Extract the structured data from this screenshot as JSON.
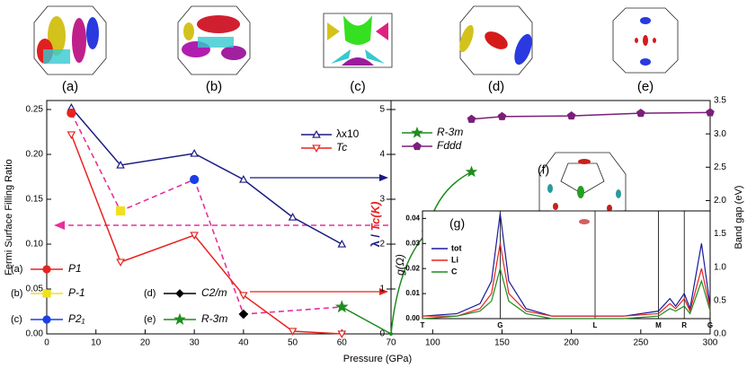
{
  "panels": [
    "(a)",
    "(b)",
    "(c)",
    "(d)",
    "(e)",
    "(f)"
  ],
  "chart_data": [
    {
      "type": "line",
      "xlabel": "Pressure (GPa)",
      "ylabel": "Fermi Surface Filling  Ratio",
      "y2label": [
        "λ /",
        "Tc(K)"
      ],
      "y3label": "Band gap (eV)",
      "xlim": [
        0,
        70
      ],
      "xticks": [
        0,
        10,
        20,
        30,
        40,
        50,
        60,
        70
      ],
      "x2lim": [
        70,
        300
      ],
      "x2ticks": [
        100,
        150,
        200,
        250,
        300
      ],
      "ylim": [
        0,
        0.26
      ],
      "yticks": [
        {
          "value": 0,
          "label": "0.00"
        },
        0.05,
        {
          "value": 0.1,
          "label": "0.10"
        },
        0.15,
        {
          "value": 0.2,
          "label": "0.20"
        },
        0.25
      ],
      "y2lim": [
        0,
        5.2
      ],
      "y2ticks": [
        0,
        1,
        2,
        3,
        4,
        5
      ],
      "y3lim": [
        0,
        3.5
      ],
      "y3ticks": [
        {
          "value": 0,
          "label": "0.0"
        },
        0.5,
        {
          "value": 1,
          "label": "1.0"
        },
        1.5,
        {
          "value": 2,
          "label": "2.0"
        },
        2.5,
        {
          "value": 3,
          "label": "3.0"
        },
        3.5
      ],
      "connector_color": "#e8309a",
      "series": [
        {
          "name": "λx10",
          "axis": "y2",
          "color": "#1a1a80",
          "marker": "triangle",
          "x": [
            5,
            15,
            30,
            40,
            50,
            60
          ],
          "values": [
            5.04,
            3.76,
            4.02,
            3.44,
            2.6,
            2.0
          ]
        },
        {
          "name": "Tc",
          "axis": "y2",
          "color": "#e8231f",
          "marker": "triangle-down",
          "x": [
            5,
            15,
            30,
            40,
            50,
            60
          ],
          "values": [
            4.44,
            1.6,
            2.2,
            0.86,
            0.06,
            0
          ]
        },
        {
          "name": "P1",
          "label": "(a)",
          "axis": "y",
          "color": "#e8231f",
          "marker": "circle",
          "x": [
            5
          ],
          "values": [
            0.246
          ]
        },
        {
          "name": "P-1",
          "label": "(b)",
          "axis": "y",
          "color": "#f0e020",
          "marker": "square",
          "x": [
            15
          ],
          "values": [
            0.137
          ]
        },
        {
          "name": "P2₁",
          "label": "(c)",
          "axis": "y",
          "color": "#1a3ee8",
          "marker": "circle",
          "x": [
            30
          ],
          "values": [
            0.172
          ]
        },
        {
          "name": "C2/m",
          "label": "(d)",
          "axis": "y",
          "color": "#000000",
          "marker": "diamond",
          "x": [
            40
          ],
          "values": [
            0.022
          ]
        },
        {
          "name": "R-3m",
          "label": "(e)",
          "axis": "y",
          "color": "#1e8c1e",
          "marker": "star",
          "x": [
            60
          ],
          "values": [
            0.03
          ]
        },
        {
          "name": "R-3m",
          "axis": "y3",
          "color": "#1e8c1e",
          "marker": "star",
          "x": [
            70,
            96,
            128
          ],
          "values": [
            0,
            1.52,
            2.43
          ]
        },
        {
          "name": "Fddd",
          "axis": "y3",
          "color": "#7a1f7a",
          "marker": "pentagon",
          "x": [
            128,
            150,
            200,
            250,
            300
          ],
          "values": [
            3.22,
            3.26,
            3.27,
            3.31,
            3.32
          ]
        }
      ]
    },
    {
      "type": "line",
      "label": "(g)",
      "ylabel": "g(Ω)",
      "xlim": [
        0,
        1
      ],
      "xticks": [
        {
          "value": 0,
          "label": "T"
        },
        {
          "value": 0.27,
          "label": "G"
        },
        {
          "value": 0.6,
          "label": "L"
        },
        {
          "value": 0.82,
          "label": "M"
        },
        {
          "value": 0.91,
          "label": "R"
        },
        {
          "value": 1,
          "label": "G"
        }
      ],
      "ylim": [
        0,
        0.043
      ],
      "yticks": [
        {
          "value": 0,
          "label": "0.00"
        },
        0.01,
        0.02,
        0.03,
        0.04
      ],
      "x": [
        0,
        0.12,
        0.2,
        0.24,
        0.27,
        0.3,
        0.36,
        0.45,
        0.7,
        0.82,
        0.86,
        0.88,
        0.91,
        0.93,
        0.97,
        1.0
      ],
      "series": [
        {
          "name": "tot",
          "color": "#1a1a9a",
          "values": [
            0.001,
            0.002,
            0.006,
            0.015,
            0.042,
            0.015,
            0.004,
            0.001,
            0.001,
            0.003,
            0.008,
            0.005,
            0.01,
            0.004,
            0.03,
            0.005
          ]
        },
        {
          "name": "Li",
          "color": "#e8231f",
          "values": [
            0.001,
            0.001,
            0.004,
            0.01,
            0.03,
            0.01,
            0.003,
            0.001,
            0.001,
            0.002,
            0.006,
            0.004,
            0.008,
            0.003,
            0.02,
            0.004
          ]
        },
        {
          "name": "C",
          "color": "#1e8c1e",
          "values": [
            0,
            0.001,
            0.003,
            0.007,
            0.02,
            0.007,
            0.002,
            0,
            0,
            0.001,
            0.004,
            0.003,
            0.005,
            0.002,
            0.015,
            0.003
          ]
        }
      ]
    }
  ]
}
